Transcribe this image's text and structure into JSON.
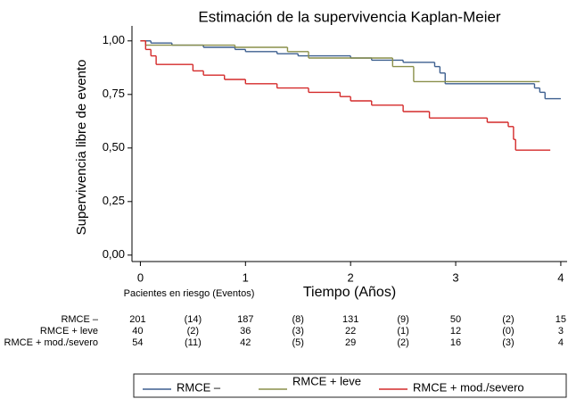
{
  "chart_data": {
    "type": "step",
    "title": "Estimación de la supervivencia Kaplan-Meier",
    "x_label": "Tiempo (Años)",
    "y_label": "Supervivencia libre de evento",
    "xlim": [
      -0.08,
      4.06
    ],
    "ylim": [
      -0.03,
      1.07
    ],
    "xticks": [
      0,
      1,
      2,
      3,
      4
    ],
    "yticks": [
      {
        "value": 0,
        "label": "0,00"
      },
      {
        "value": 0.25,
        "label": "0,25"
      },
      {
        "value": 0.5,
        "label": "0,50"
      },
      {
        "value": 0.75,
        "label": "0,75"
      },
      {
        "value": 1,
        "label": "1,00"
      }
    ],
    "legend": "bottom",
    "series": [
      {
        "name": "RMCE –",
        "color": "#3d5f8f",
        "x": [
          0,
          0.1,
          0.3,
          0.6,
          0.9,
          1.0,
          1.3,
          1.5,
          2.0,
          2.2,
          2.5,
          2.8,
          2.85,
          2.9,
          3.75,
          3.8,
          3.85,
          4.0
        ],
        "values": [
          1.0,
          0.99,
          0.98,
          0.97,
          0.96,
          0.95,
          0.94,
          0.93,
          0.92,
          0.91,
          0.9,
          0.88,
          0.85,
          0.8,
          0.78,
          0.76,
          0.73,
          0.73
        ]
      },
      {
        "name": "RMCE + leve",
        "color": "#8a8f4a",
        "x": [
          0,
          0.05,
          0.9,
          1.4,
          1.6,
          2.4,
          2.6,
          3.8
        ],
        "values": [
          1.0,
          0.98,
          0.97,
          0.95,
          0.92,
          0.88,
          0.81,
          0.81
        ]
      },
      {
        "name": "RMCE + mod./severo",
        "color": "#d42a2a",
        "x": [
          0,
          0.05,
          0.1,
          0.15,
          0.5,
          0.6,
          0.8,
          1.0,
          1.3,
          1.6,
          1.9,
          2.0,
          2.2,
          2.5,
          2.75,
          3.3,
          3.5,
          3.55,
          3.57,
          3.9
        ],
        "values": [
          1.0,
          0.96,
          0.93,
          0.89,
          0.86,
          0.84,
          0.82,
          0.8,
          0.78,
          0.76,
          0.74,
          0.72,
          0.7,
          0.67,
          0.64,
          0.62,
          0.6,
          0.54,
          0.49,
          0.49
        ]
      }
    ],
    "risk_table": {
      "title": "Pacientes en riesgo (Eventos)",
      "rows": [
        {
          "name": "RMCE –",
          "at_risk": [
            201,
            187,
            131,
            50,
            15
          ],
          "events": [
            "(14)",
            "(8)",
            "(9)",
            "(2)"
          ]
        },
        {
          "name": "RMCE + leve",
          "at_risk": [
            40,
            36,
            22,
            12,
            3
          ],
          "events": [
            "(2)",
            "(3)",
            "(1)",
            "(0)"
          ]
        },
        {
          "name": "RMCE + mod./severo",
          "at_risk": [
            54,
            42,
            29,
            16,
            4
          ],
          "events": [
            "(11)",
            "(5)",
            "(2)",
            "(3)"
          ]
        }
      ]
    }
  }
}
